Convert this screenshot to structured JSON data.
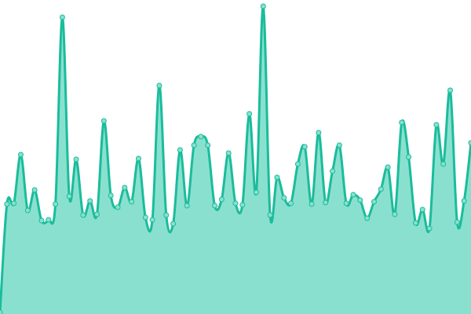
{
  "chart_data": {
    "type": "area",
    "title": "",
    "xlabel": "",
    "ylabel": "",
    "ylim": [
      0,
      400
    ],
    "grid": false,
    "legend": "none",
    "curve": "smooth",
    "markers": true,
    "colors": {
      "line": "#1abc9c",
      "fill": "#8ae0ce",
      "marker_fill": "#8ae0ce",
      "marker_stroke": "#1abc9c"
    },
    "x": [
      0,
      1,
      2,
      3,
      4,
      5,
      6,
      7,
      8,
      9,
      10,
      11,
      12,
      13,
      14,
      15,
      16,
      17,
      18,
      19,
      20,
      21,
      22,
      23,
      24,
      25,
      26,
      27,
      28,
      29,
      30,
      31,
      32,
      33,
      34,
      35,
      36,
      37,
      38,
      39,
      40,
      41,
      42,
      43,
      44,
      45,
      46,
      47,
      48,
      49,
      50,
      51,
      52,
      53,
      54,
      55,
      56,
      57,
      58,
      59,
      60,
      61,
      62,
      63,
      64,
      65,
      66,
      67,
      68
    ],
    "values": [
      2,
      140,
      141,
      203,
      132,
      158,
      119,
      120,
      140,
      378,
      150,
      197,
      126,
      144,
      127,
      246,
      151,
      136,
      161,
      143,
      198,
      123,
      120,
      291,
      126,
      115,
      209,
      138,
      215,
      226,
      215,
      138,
      146,
      205,
      141,
      139,
      255,
      155,
      392,
      126,
      174,
      148,
      141,
      191,
      213,
      140,
      231,
      142,
      182,
      215,
      141,
      152,
      145,
      122,
      143,
      159,
      187,
      127,
      244,
      200,
      116,
      133,
      109,
      241,
      191,
      285,
      117,
      144,
      218
    ]
  }
}
